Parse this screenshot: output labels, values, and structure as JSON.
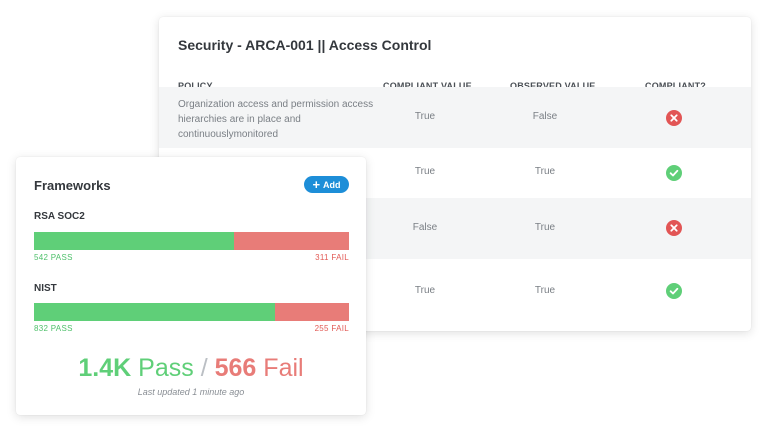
{
  "security": {
    "title": "Security - ARCA-001 || Access Control",
    "columns": {
      "policy": "POLICY",
      "compliant_value": "COMPLIANT VALUE",
      "observed_value": "OBSERVED VALUE",
      "compliant": "COMPLIANT?"
    },
    "rows": [
      {
        "policy": "Organization access and permission access hierarchies are in place and continuouslymonitored",
        "compliant_value": "True",
        "observed_value": "False",
        "status": "fail"
      },
      {
        "policy": "",
        "compliant_value": "True",
        "observed_value": "True",
        "status": "pass"
      },
      {
        "policy": "",
        "compliant_value": "False",
        "observed_value": "True",
        "status": "fail"
      },
      {
        "policy": "",
        "compliant_value": "True",
        "observed_value": "True",
        "status": "pass"
      }
    ],
    "icons": {
      "fail": "x-circle-icon",
      "pass": "check-circle-icon"
    }
  },
  "frameworks": {
    "title": "Frameworks",
    "add_label": "Add",
    "items": [
      {
        "name": "RSA SOC2",
        "pass": "542 PASS",
        "fail": "311 FAIL",
        "pass_count": 542,
        "fail_count": 311
      },
      {
        "name": "NIST",
        "pass": "832 PASS",
        "fail": "255 FAIL",
        "pass_count": 832,
        "fail_count": 255
      }
    ],
    "summary": {
      "pass_number": "1.4K",
      "pass_word": "Pass",
      "separator": "/",
      "fail_number": "566",
      "fail_word": "Fail"
    },
    "updated": "Last updated 1 minute ago"
  },
  "colors": {
    "pass": "#5fcf78",
    "fail": "#e87c78",
    "accent": "#1d8ed8"
  }
}
